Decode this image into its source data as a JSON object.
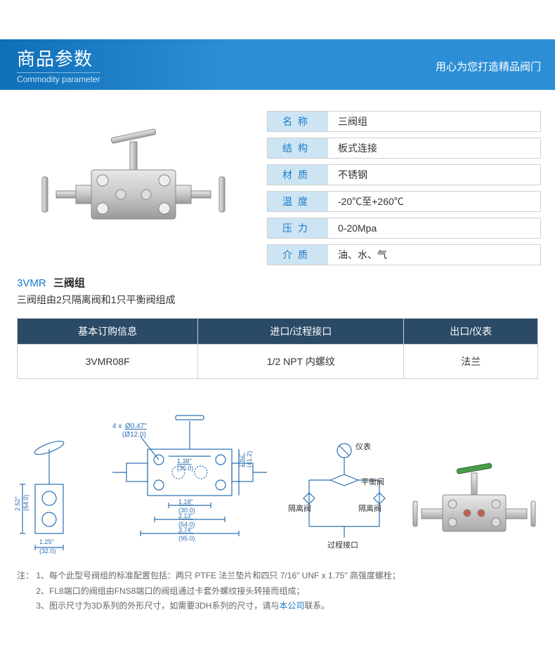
{
  "banner": {
    "title": "商品参数",
    "subtitle": "Commodity parameter",
    "slogan": "用心为您打造精品阀门",
    "bg_gradient_from": "#0f6fb8",
    "bg_gradient_to": "#2c8ed6"
  },
  "spec_table": {
    "label_bg": "#cde4f3",
    "label_color": "#1b7bc8",
    "border_color": "#d0d0d0",
    "rows": [
      {
        "label": "名称",
        "value": "三阀组"
      },
      {
        "label": "结构",
        "value": "板式连接"
      },
      {
        "label": "材质",
        "value": "不锈钢"
      },
      {
        "label": "温度",
        "value": "-20℃至+260℃"
      },
      {
        "label": "压力",
        "value": "0-20Mpa"
      },
      {
        "label": "介质",
        "value": "油、水、气"
      }
    ]
  },
  "model": {
    "code": "3VMR",
    "name": "三阀组",
    "desc": "三阀组由2只隔离阀和1只平衡阀组成"
  },
  "order_table": {
    "header_bg": "#2b4a66",
    "header_color": "#ffffff",
    "columns": [
      "基本订购信息",
      "进口/过程接口",
      "出口/仪表"
    ],
    "rows": [
      [
        "3VMR08F",
        "1/2 NPT 内螺纹",
        "法兰"
      ]
    ]
  },
  "diagram": {
    "stroke": "#2a6fb0",
    "hole_label": "4 x",
    "hole_dia_in": "Ø0.47\"",
    "hole_dia_mm": "(Ø12.0)",
    "dims": {
      "w1_in": "1.38\"",
      "w1_mm": "(35.0)",
      "h1_in": "1.62\"",
      "h1_mm": "(41.2)",
      "side_h_in": "2.52\"",
      "side_h_mm": "(64.0)",
      "side_w_in": "1.25\"",
      "side_w_mm": "(32.0)",
      "bot1_in": "1.18\"",
      "bot1_mm": "(30.0)",
      "bot2_in": "2.13\"",
      "bot2_mm": "(54.0)",
      "bot3_in": "3.74\"",
      "bot3_mm": "(95.0)"
    },
    "schematic": {
      "top_label": "仪表",
      "mid_label": "平衡阀",
      "left_label": "隔离阀",
      "right_label": "隔离阀",
      "bottom_label": "过程接口"
    }
  },
  "notes": {
    "prefix": "注：",
    "items": [
      "1、每个此型号阀组的标准配置包括：两只 PTFE 法兰垫片和四只 7/16\" UNF x 1.75\" 高强度螺栓；",
      "2、FL8端口的阀组由FNS8端口的阀组通过卡套外螺纹接头转接而组成；",
      "3、图示尺寸为3D系列的外形尺寸，如需要3DH系列的尺寸，请与本公司联系。"
    ],
    "link_text": "本公司",
    "link_color": "#1b7bc8"
  },
  "colors": {
    "product_metal": "#c8c8c8",
    "product_metal_dark": "#9a9a9a",
    "render_green": "#4a9b4a"
  }
}
